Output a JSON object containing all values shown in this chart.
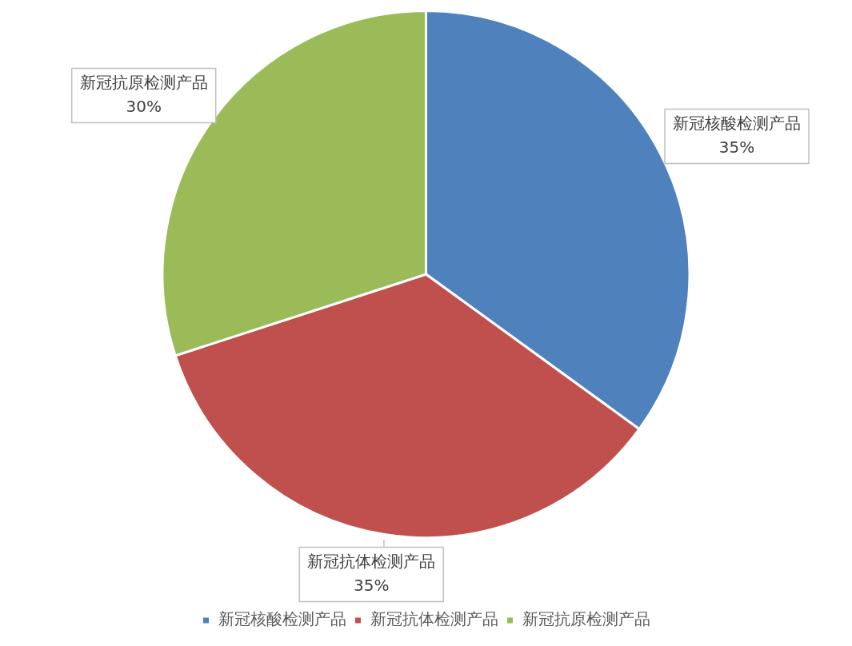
{
  "chart_data": {
    "type": "pie",
    "categories": [
      "新冠核酸检测产品",
      "新冠抗体检测产品",
      "新冠抗原检测产品"
    ],
    "values": [
      35,
      35,
      30
    ],
    "value_labels": [
      "35%",
      "35%",
      "30%"
    ],
    "colors": [
      "#4f81bd",
      "#c0504d",
      "#9bbb59"
    ],
    "legend": "bottom"
  }
}
